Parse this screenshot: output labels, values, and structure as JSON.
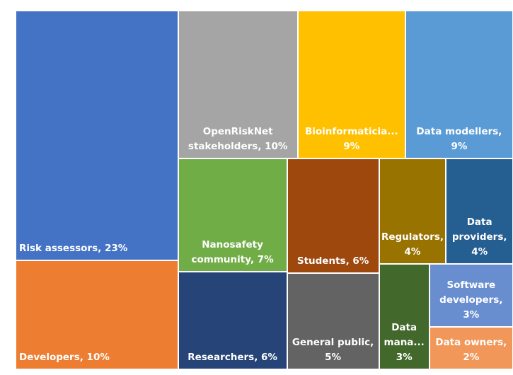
{
  "chart_data": {
    "type": "treemap",
    "values": [
      23,
      10,
      10,
      9,
      9,
      7,
      6,
      6,
      5,
      4,
      4,
      3,
      3,
      2
    ],
    "value_labels": [
      "Risk assessors, 23%",
      "Developers, 10%",
      "OpenRiskNet stakeholders, 10%",
      "Bioinformaticia... 9%",
      "Data modellers, 9%",
      "Nanosafety community, 7%",
      "Researchers, 6%",
      "Students, 6%",
      "General public, 5%",
      "Regulators, 4%",
      "Data providers, 4%",
      "Data mana... 3%",
      "Software developers, 3%",
      "Data owners, 2%"
    ],
    "colors": [
      "#4472c4",
      "#ed7d31",
      "#a5a5a5",
      "#ffc000",
      "#5b9bd5",
      "#70ad47",
      "#264478",
      "#9e480e",
      "#636363",
      "#997300",
      "#255e91",
      "#43682b",
      "#698ed0",
      "#f1975a"
    ]
  }
}
